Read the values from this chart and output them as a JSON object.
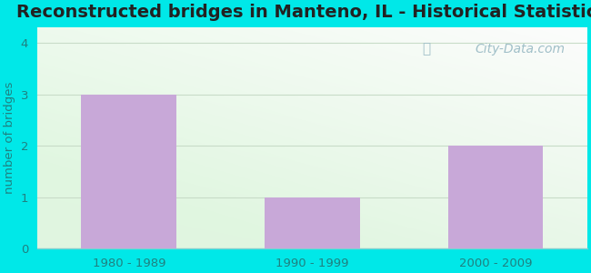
{
  "title": "Reconstructed bridges in Manteno, IL - Historical Statistics",
  "categories": [
    "1980 - 1989",
    "1990 - 1999",
    "2000 - 2009"
  ],
  "values": [
    3,
    1,
    2
  ],
  "bar_color": "#c8a8d8",
  "bar_edge_color": "#b898cc",
  "ylabel": "number of bridges",
  "ylim": [
    0,
    4.3
  ],
  "yticks": [
    0,
    1,
    2,
    3,
    4
  ],
  "background_outer": "#00e8e8",
  "title_fontsize": 14,
  "title_color": "#222222",
  "axis_label_color": "#208080",
  "tick_label_color": "#208080",
  "watermark_text": "City-Data.com",
  "watermark_color": "#a0bfc8",
  "grid_color": "#c8dcc8",
  "bottom_spine_color": "#80d0d0"
}
